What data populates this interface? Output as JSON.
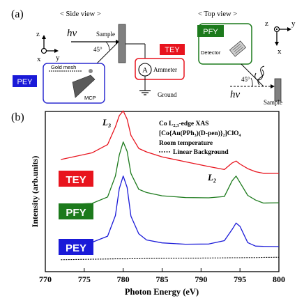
{
  "panel_a": {
    "label": "(a)",
    "side_view": {
      "title": "< Side view >",
      "axis_z": "z",
      "axis_x": "x",
      "axis_y": "y",
      "sample": "Sample",
      "hv": "hv",
      "angle": "45°",
      "gold_mesh": "Gold mesh",
      "mcp": "MCP",
      "pey": "PEY",
      "tey": "TEY",
      "ammeter_symbol": "A",
      "ammeter": "Ammeter",
      "ground": "Ground"
    },
    "top_view": {
      "title": "< Top view >",
      "axis_z": "z",
      "axis_y": "y",
      "axis_x": "x",
      "pfy": "PFY",
      "detector": "Detector",
      "angle": "45°",
      "hv": "hv",
      "sample": "Sample"
    },
    "colors": {
      "tey": "#e8141e",
      "pfy": "#1c7a1c",
      "pey": "#1a1ad8"
    }
  },
  "panel_b": {
    "label": "(b)",
    "annotations": {
      "l3": "L",
      "l3_sub": "3",
      "l2": "L",
      "l2_sub": "2",
      "line1_a": "Co L",
      "line1_sub": "2,3",
      "line1_b": "-edge XAS",
      "line2": "[Co{Au(PPh₃)(D-pen)}₂]ClO₄",
      "line3": "Room temperature",
      "line4": "Linear Background"
    },
    "badges": {
      "tey": "TEY",
      "pfy": "PFY",
      "pey": "PEY"
    }
  },
  "chart_data": {
    "type": "line",
    "xlabel": "Photon Energy (eV)",
    "ylabel": "Intensity (arb.units)",
    "xlim": [
      770,
      800
    ],
    "xticks": [
      "770",
      "775",
      "780",
      "785",
      "790",
      "795",
      "800"
    ],
    "x": [
      772,
      776,
      778,
      779,
      779.5,
      780,
      780.5,
      781,
      782,
      783,
      785,
      788,
      791,
      793,
      794,
      794.5,
      795,
      796,
      797,
      798,
      800
    ],
    "series": [
      {
        "name": "TEY",
        "color": "#e8141e",
        "values": [
          0.7,
          0.74,
          0.79,
          0.9,
          0.97,
          1.0,
          0.95,
          0.85,
          0.77,
          0.75,
          0.72,
          0.69,
          0.66,
          0.64,
          0.68,
          0.69,
          0.67,
          0.64,
          0.62,
          0.61,
          0.61
        ]
      },
      {
        "name": "PFY",
        "color": "#1c7a1c",
        "values": [
          0.42,
          0.43,
          0.47,
          0.6,
          0.73,
          0.81,
          0.75,
          0.61,
          0.51,
          0.49,
          0.47,
          0.46,
          0.46,
          0.47,
          0.57,
          0.6,
          0.56,
          0.48,
          0.45,
          0.43,
          0.43
        ]
      },
      {
        "name": "PEY",
        "color": "#1a1ad8",
        "values": [
          0.16,
          0.18,
          0.22,
          0.35,
          0.52,
          0.6,
          0.53,
          0.35,
          0.24,
          0.2,
          0.18,
          0.17,
          0.17,
          0.19,
          0.26,
          0.3,
          0.28,
          0.18,
          0.16,
          0.16,
          0.16
        ]
      },
      {
        "name": "Linear Background",
        "color": "#000000",
        "values": [
          0.075,
          0.078,
          0.079,
          0.08,
          0.08,
          0.08,
          0.08,
          0.081,
          0.081,
          0.082,
          0.083,
          0.084,
          0.085,
          0.086,
          0.087,
          0.087,
          0.087,
          0.088,
          0.088,
          0.089,
          0.09
        ]
      }
    ]
  }
}
